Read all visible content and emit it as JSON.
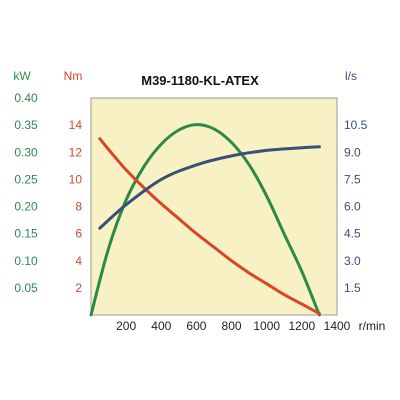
{
  "chart_data": {
    "type": "line",
    "title": "M39-1180-KL-ATEX",
    "xlabel": "r/min",
    "xlim": [
      0,
      1400
    ],
    "x_ticks": [
      "200",
      "400",
      "600",
      "800",
      "1000",
      "1200",
      "1400"
    ],
    "grid": false,
    "background_color": "#f7f1c4",
    "axes": {
      "power": {
        "unit": "kW",
        "color": "#2e8b4a",
        "range": [
          0,
          0.4
        ],
        "ticks": [
          "0.05",
          "0.10",
          "0.15",
          "0.20",
          "0.25",
          "0.30",
          "0.35",
          "0.40"
        ]
      },
      "torque": {
        "unit": "Nm",
        "color": "#d9452b",
        "range": [
          0,
          16
        ],
        "ticks": [
          "2",
          "4",
          "6",
          "8",
          "10",
          "12",
          "14"
        ]
      },
      "flow": {
        "unit": "l/s",
        "color": "#3a4f7a",
        "range": [
          0,
          12
        ],
        "ticks": [
          "1.5",
          "3.0",
          "4.5",
          "6.0",
          "7.5",
          "9.0",
          "10.5"
        ]
      }
    },
    "series": [
      {
        "axis": "power",
        "color": "#2a8a46",
        "x": [
          0,
          100,
          200,
          300,
          400,
          500,
          600,
          700,
          800,
          900,
          1000,
          1100,
          1200,
          1300
        ],
        "values": [
          0.0,
          0.123,
          0.212,
          0.273,
          0.315,
          0.341,
          0.351,
          0.343,
          0.318,
          0.277,
          0.219,
          0.149,
          0.08,
          0.0
        ]
      },
      {
        "axis": "torque",
        "color": "#d9452b",
        "x": [
          50,
          100,
          200,
          300,
          400,
          500,
          600,
          700,
          800,
          900,
          1000,
          1100,
          1200,
          1300
        ],
        "values": [
          13.0,
          12.2,
          10.7,
          9.4,
          8.2,
          7.1,
          6.0,
          5.0,
          4.0,
          3.1,
          2.3,
          1.5,
          0.8,
          0.1
        ]
      },
      {
        "axis": "flow",
        "color": "#3a4f7a",
        "x": [
          50,
          200,
          400,
          600,
          800,
          1000,
          1200,
          1300
        ],
        "values": [
          4.8,
          6.1,
          7.5,
          8.3,
          8.8,
          9.1,
          9.25,
          9.3
        ]
      }
    ]
  }
}
